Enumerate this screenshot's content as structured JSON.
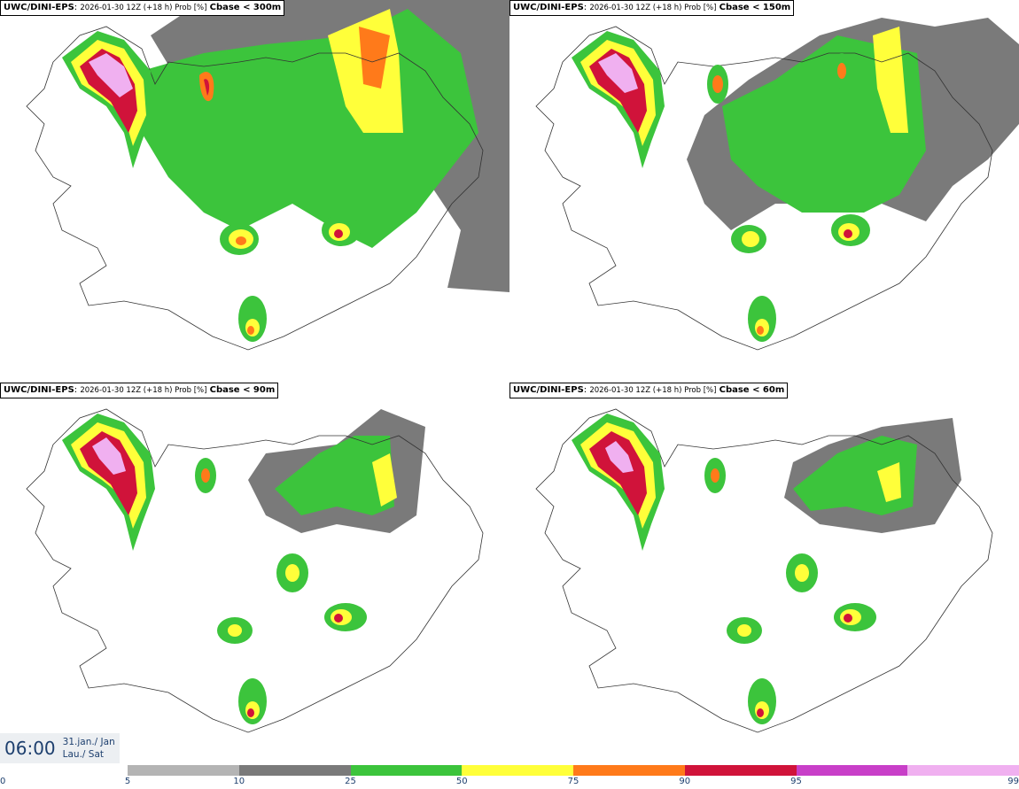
{
  "panels": [
    {
      "model": "UWC/DINI-EPS",
      "meta": "2026-01-30 12Z (+18 h) Prob [%]",
      "threshold": "Cbase < 300m"
    },
    {
      "model": "UWC/DINI-EPS",
      "meta": "2026-01-30 12Z (+18 h) Prob [%]",
      "threshold": "Cbase < 150m"
    },
    {
      "model": "UWC/DINI-EPS",
      "meta": "2026-01-30 12Z (+18 h) Prob [%]",
      "threshold": "Cbase < 90m"
    },
    {
      "model": "UWC/DINI-EPS",
      "meta": "2026-01-30 12Z (+18 h) Prob [%]",
      "threshold": "Cbase < 60m"
    }
  ],
  "valid_time": {
    "clock": "06:00",
    "date_line1": "31.jan./ Jan",
    "date_line2": "Lau./ Sat"
  },
  "legend": {
    "ticks": [
      "0",
      "5",
      "10",
      "25",
      "50",
      "75",
      "90",
      "95",
      "99"
    ],
    "colors": [
      "#b4b4b4",
      "#7a7a7a",
      "#3cc43c",
      "#ffff3a",
      "#ff7a1a",
      "#d0133a",
      "#c83fc8",
      "#f0b0f0"
    ]
  }
}
